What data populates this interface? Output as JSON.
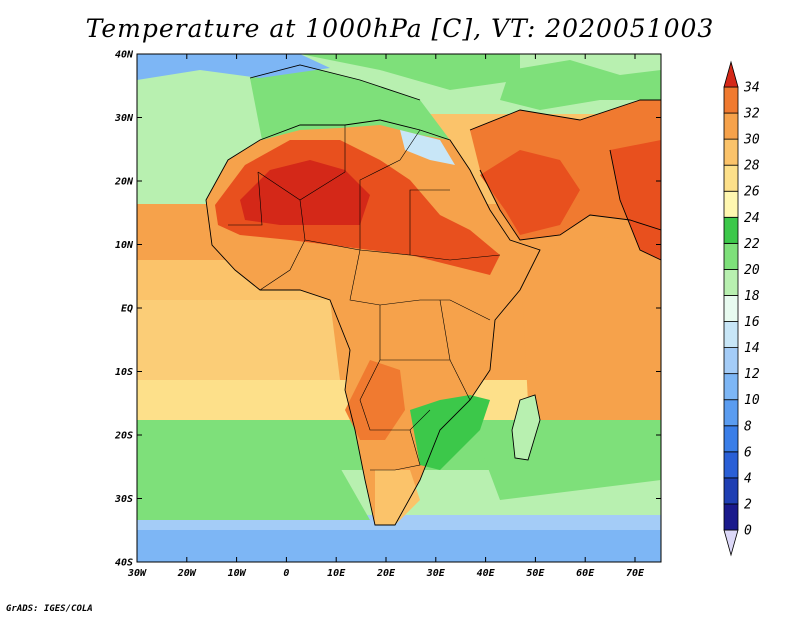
{
  "title": "Temperature at 1000hPa [C], VT: 2020051003",
  "credit": "GrADS: IGES/COLA",
  "map": {
    "lat_ticks": [
      "40N",
      "30N",
      "20N",
      "10N",
      "EQ",
      "10S",
      "20S",
      "30S",
      "40S"
    ],
    "lon_ticks": [
      "30W",
      "20W",
      "10W",
      "0",
      "10E",
      "20E",
      "30E",
      "40E",
      "50E",
      "60E",
      "70E"
    ]
  },
  "colorbar": {
    "levels": [
      "0",
      "2",
      "4",
      "6",
      "8",
      "10",
      "12",
      "14",
      "16",
      "18",
      "20",
      "22",
      "24",
      "26",
      "28",
      "30",
      "32",
      "34"
    ],
    "colors": [
      "#1a1a8c",
      "#1f3fb3",
      "#2a5fd6",
      "#3a7ee8",
      "#5a9cf0",
      "#7db6f5",
      "#a4ccf7",
      "#c8e6f7",
      "#e8fbf0",
      "#b8f0b0",
      "#7ee07a",
      "#3cc84a",
      "#fff7b0",
      "#fde08a",
      "#fbc36a",
      "#f6a24b",
      "#f07a30",
      "#e8501e",
      "#d42818"
    ]
  }
}
